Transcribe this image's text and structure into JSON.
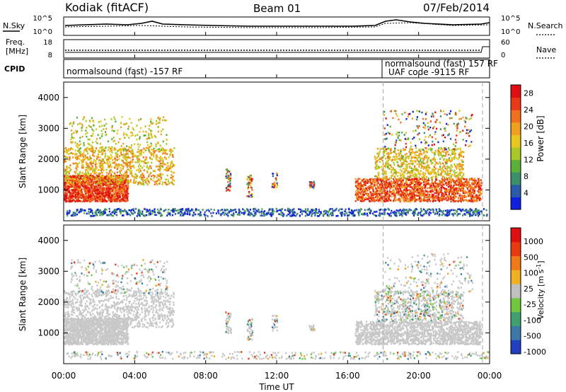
{
  "header": {
    "left": "Kodiak (fitACF)",
    "center": "Beam 01",
    "right": "07/Feb/2014"
  },
  "aux_panels": {
    "nsky_label": "N.Sky",
    "nsky_ticks": [
      "10^5",
      "10^0"
    ],
    "nsearch_label": "N.Search",
    "nsearch_ticks": [
      "10^5",
      "10^0"
    ],
    "freq_label_1": "Freq.",
    "freq_label_2": "[MHz]",
    "freq_ticks": [
      "18",
      "8"
    ],
    "nave_label": "Nave",
    "nave_ticks": [
      "60",
      "0"
    ],
    "cpid_label": "CPID",
    "cpid_entries": [
      {
        "text": "normalsound (fast) -157 RF"
      },
      {
        "text": "normalsound (fast) 157 RF"
      },
      {
        "text": "UAF code -9115 RF"
      }
    ]
  },
  "chart_data": [
    {
      "type": "heatmap",
      "title": "",
      "xlabel": "Time UT",
      "ylabel": "Slant Range [km]",
      "x_ticks": [
        "00:00",
        "04:00",
        "08:00",
        "12:00",
        "16:00",
        "20:00",
        "00:00"
      ],
      "y_ticks": [
        "1000",
        "2000",
        "3000",
        "4000"
      ],
      "ylim": [
        0,
        4500
      ],
      "colorbar": {
        "label": "Power [dB]",
        "ticks": [
          "4",
          "8",
          "12",
          "16",
          "20",
          "24",
          "28"
        ],
        "colors": [
          "#1020e0",
          "#2a5aa8",
          "#3d8f6a",
          "#5bb03a",
          "#a8c828",
          "#e8c820",
          "#f0a020",
          "#f07020",
          "#e83a18",
          "#e01010"
        ]
      }
    },
    {
      "type": "heatmap",
      "title": "",
      "xlabel": "Time UT",
      "ylabel": "Slant Range [km]",
      "x_ticks": [
        "00:00",
        "04:00",
        "08:00",
        "12:00",
        "16:00",
        "20:00",
        "00:00"
      ],
      "y_ticks": [
        "1000",
        "2000",
        "3000",
        "4000"
      ],
      "ylim": [
        0,
        4500
      ],
      "colorbar": {
        "label": "Velocity [m s^-1]",
        "ticks": [
          "1000",
          "500",
          "100",
          "25",
          "-25",
          "-100",
          "-500",
          "-1000"
        ],
        "colors": [
          "#2040c0",
          "#3a78a8",
          "#40a070",
          "#70c840",
          "#c0c0c0",
          "#f0b020",
          "#f07a18",
          "#e83a10",
          "#e01010"
        ]
      }
    }
  ],
  "time_axis": {
    "xlabel": "Time UT"
  }
}
